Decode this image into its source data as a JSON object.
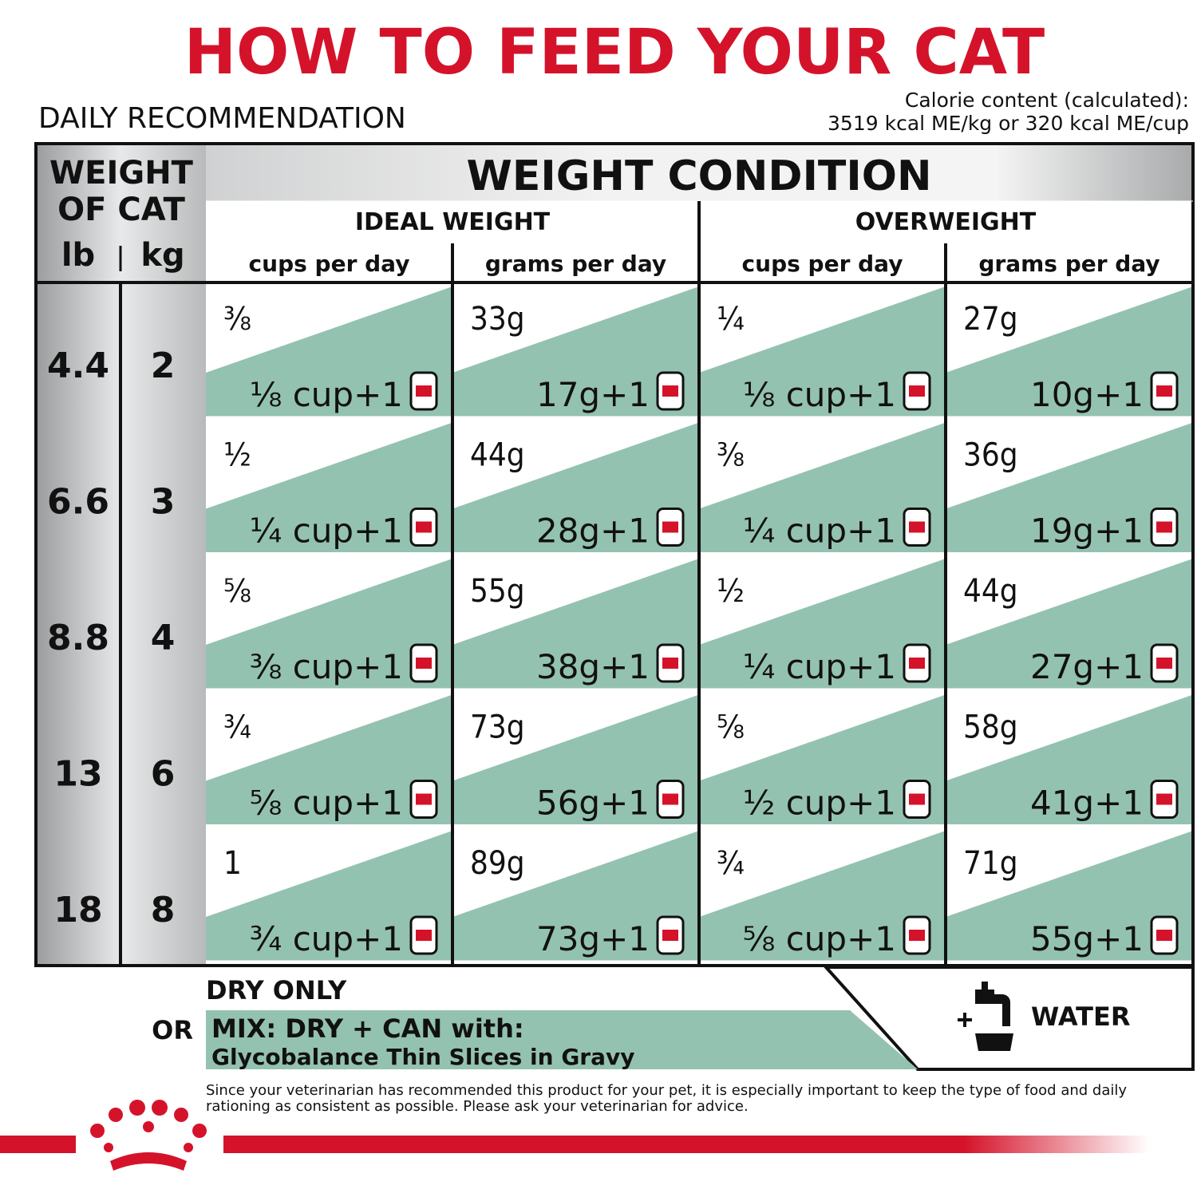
{
  "header": {
    "title": "HOW TO FEED YOUR CAT",
    "subtitle": "DAILY RECOMMENDATION",
    "calorie_lines": [
      "Calorie content (calculated):",
      "3519 kcal ME/kg or 320 kcal ME/cup"
    ]
  },
  "table": {
    "weight_header": [
      "WEIGHT",
      "OF CAT"
    ],
    "lb": "lb",
    "kg": "kg",
    "condition": "WEIGHT CONDITION",
    "groups": [
      "IDEAL WEIGHT",
      "OVERWEIGHT"
    ],
    "columns": [
      "cups per day",
      "grams per day",
      "cups per day",
      "grams per day"
    ],
    "rows": [
      {
        "lb": "4.4",
        "kg": "2",
        "cells": [
          {
            "dry": "⅜",
            "mix": "⅛ cup+1"
          },
          {
            "dry": "33g",
            "mix": "17g+1"
          },
          {
            "dry": "¼",
            "mix": "⅛ cup+1"
          },
          {
            "dry": "27g",
            "mix": "10g+1"
          }
        ]
      },
      {
        "lb": "6.6",
        "kg": "3",
        "cells": [
          {
            "dry": "½",
            "mix": "¼ cup+1"
          },
          {
            "dry": "44g",
            "mix": "28g+1"
          },
          {
            "dry": "⅜",
            "mix": "¼ cup+1"
          },
          {
            "dry": "36g",
            "mix": "19g+1"
          }
        ]
      },
      {
        "lb": "8.8",
        "kg": "4",
        "cells": [
          {
            "dry": "⅝",
            "mix": "⅜ cup+1"
          },
          {
            "dry": "55g",
            "mix": "38g+1"
          },
          {
            "dry": "½",
            "mix": "¼ cup+1"
          },
          {
            "dry": "44g",
            "mix": "27g+1"
          }
        ]
      },
      {
        "lb": "13",
        "kg": "6",
        "cells": [
          {
            "dry": "¾",
            "mix": "⅝ cup+1"
          },
          {
            "dry": "73g",
            "mix": "56g+1"
          },
          {
            "dry": "⅝",
            "mix": "½ cup+1"
          },
          {
            "dry": "58g",
            "mix": "41g+1"
          }
        ]
      },
      {
        "lb": "18",
        "kg": "8",
        "cells": [
          {
            "dry": "1",
            "mix": "¾ cup+1"
          },
          {
            "dry": "89g",
            "mix": "73g+1"
          },
          {
            "dry": "¾",
            "mix": "⅝ cup+1"
          },
          {
            "dry": "71g",
            "mix": "55g+1"
          }
        ]
      }
    ]
  },
  "footer": {
    "dry_only": "DRY ONLY",
    "or": "OR",
    "mix": "MIX: DRY + CAN with:",
    "product": "Glycobalance Thin Slices in Gravy",
    "water": "WATER",
    "disclaimer": [
      "Since your veterinarian has recommended this product for your pet, it is especially important to keep the type of food and daily",
      "rationing as consistent as possible. Please ask your veterinarian for advice."
    ]
  }
}
